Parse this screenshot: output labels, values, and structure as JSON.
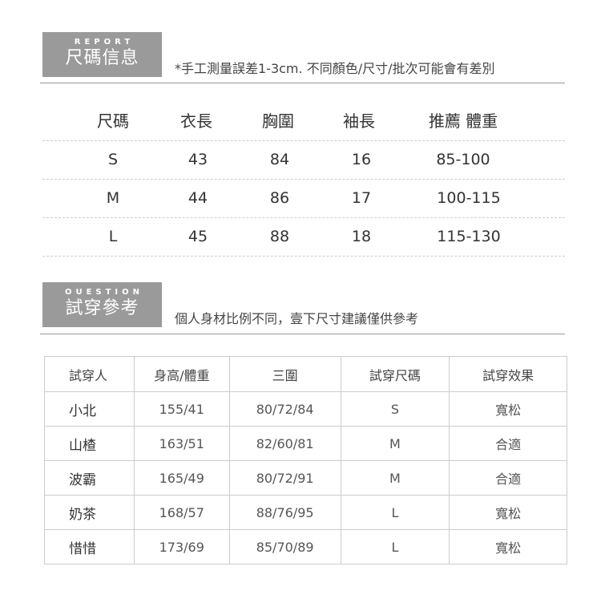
{
  "report": {
    "badge_en": "REPORT",
    "badge_zh": "尺碼信息",
    "note": "*手工測量誤差1-3cm. 不同顏色/尺寸/批次可能會有差別",
    "headers": [
      "尺碼",
      "衣長",
      "胸圍",
      "袖長",
      "推薦 體重"
    ],
    "rows": [
      [
        "S",
        "43",
        "84",
        "16",
        "85-100"
      ],
      [
        "M",
        "44",
        "86",
        "17",
        "100-115"
      ],
      [
        "L",
        "45",
        "88",
        "18",
        "115-130"
      ]
    ]
  },
  "question": {
    "badge_en": "OUESTION",
    "badge_zh": "試穿參考",
    "note": "個人身材比例不同，壹下尺寸建議僅供參考",
    "headers": [
      "試穿人",
      "身高/體重",
      "三圍",
      "試穿尺碼",
      "試穿效果"
    ],
    "rows": [
      [
        "小北",
        "155/41",
        "80/72/84",
        "S",
        "寬松"
      ],
      [
        "山楂",
        "163/51",
        "82/60/81",
        "M",
        "合適"
      ],
      [
        "波霸",
        "165/49",
        "80/72/91",
        "M",
        "合適"
      ],
      [
        "奶茶",
        "168/57",
        "88/76/95",
        "L",
        "寬松"
      ],
      [
        "惜惜",
        "173/69",
        "85/70/89",
        "L",
        "寬松"
      ]
    ]
  },
  "colors": {
    "badge": "#9a9a9a",
    "text": "#444444"
  }
}
